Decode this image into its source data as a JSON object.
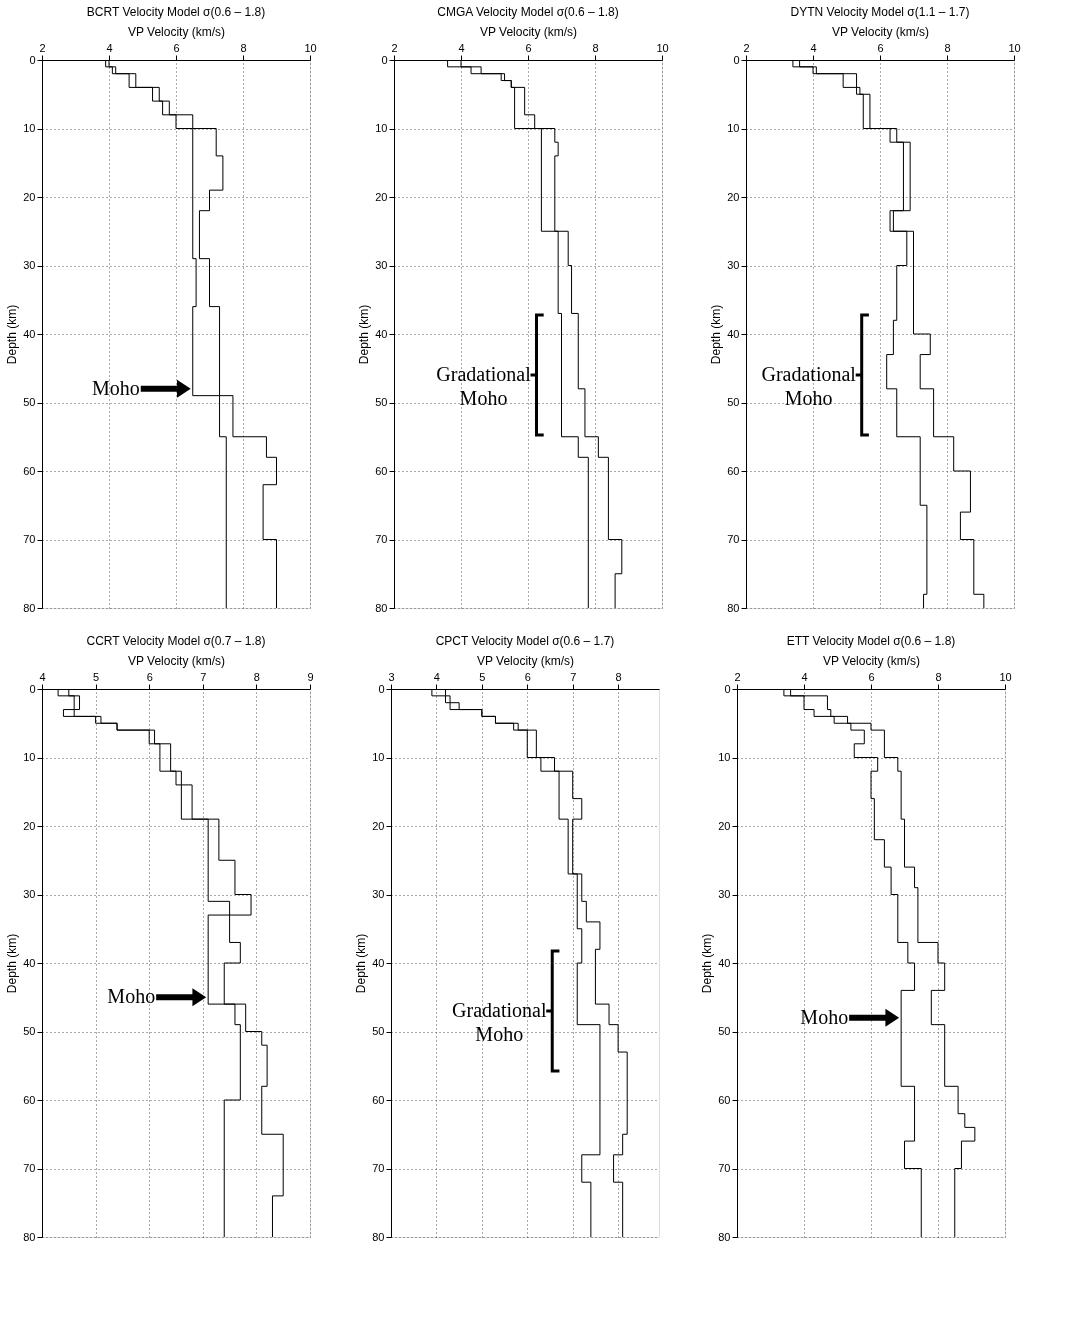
{
  "chart_data": [
    {
      "type": "line",
      "title": "BCRT Velocity Model σ(0.6 – 1.8)",
      "xlabel": "VP Velocity (km/s)",
      "ylabel": "Depth (km)",
      "xlim": [
        2,
        10
      ],
      "xticks": [
        2,
        4,
        6,
        8,
        10
      ],
      "ylim": [
        80,
        0
      ],
      "yticks": [
        0,
        10,
        20,
        30,
        40,
        50,
        60,
        70,
        80
      ],
      "grid": true,
      "line_style": "solid",
      "series": [
        {
          "color": "#000000",
          "x": [
            3.9,
            3.9,
            4.1,
            4.1,
            4.6,
            4.6,
            5.3,
            5.3,
            5.6,
            5.6,
            6.0,
            6.0,
            6.5,
            6.5,
            6.6,
            6.6,
            6.5,
            6.5,
            7.3,
            7.3,
            7.5,
            7.5
          ],
          "values": [
            0,
            1,
            1,
            2,
            2,
            4,
            4,
            6,
            6,
            8,
            8,
            10,
            10,
            29,
            29,
            36,
            36,
            49,
            49,
            55,
            55,
            80
          ]
        },
        {
          "color": "#000000",
          "x": [
            4.0,
            4.0,
            4.2,
            4.2,
            4.8,
            4.8,
            5.5,
            5.5,
            5.8,
            5.8,
            6.5,
            6.5,
            7.2,
            7.2,
            7.4,
            7.4,
            7.0,
            7.0,
            6.7,
            6.7,
            7.0,
            7.0,
            7.3,
            7.3,
            7.7,
            7.7,
            8.7,
            8.7,
            9.0,
            9.0,
            8.6,
            8.6,
            9.0,
            9.0
          ],
          "values": [
            0,
            1,
            1,
            2,
            2,
            4,
            4,
            6,
            6,
            8,
            8,
            10,
            10,
            14,
            14,
            19,
            19,
            22,
            22,
            29,
            29,
            36,
            36,
            49,
            49,
            55,
            55,
            58,
            58,
            62,
            62,
            70,
            70,
            80
          ]
        }
      ],
      "annotations": [
        {
          "text": "Moho",
          "x": 6.5,
          "y": 48
        }
      ]
    },
    {
      "type": "line",
      "title": "CMGA Velocity Model σ(0.6 – 1.8)",
      "xlabel": "VP Velocity (km/s)",
      "ylabel": "Depth (km)",
      "xlim": [
        2,
        10
      ],
      "xticks": [
        2,
        4,
        6,
        8,
        10
      ],
      "ylim": [
        80,
        0
      ],
      "yticks": [
        0,
        10,
        20,
        30,
        40,
        50,
        60,
        70,
        80
      ],
      "grid": true,
      "line_style": "solid",
      "series": [
        {
          "color": "#000000",
          "x": [
            3.6,
            3.6,
            4.3,
            4.3,
            5.2,
            5.2,
            5.5,
            5.5,
            5.6,
            5.6,
            6.4,
            6.4,
            6.9,
            6.9,
            7.0,
            7.0,
            7.5,
            7.5,
            7.8,
            7.8
          ],
          "values": [
            0,
            1,
            1,
            2,
            2,
            3,
            3,
            4,
            4,
            10,
            10,
            25,
            25,
            37,
            37,
            55,
            55,
            58,
            58,
            80
          ]
        },
        {
          "color": "#000000",
          "x": [
            4.0,
            4.0,
            4.6,
            4.6,
            5.3,
            5.3,
            5.5,
            5.5,
            5.9,
            5.9,
            6.2,
            6.2,
            6.8,
            6.8,
            6.9,
            6.9,
            6.8,
            6.8,
            7.2,
            7.2,
            7.3,
            7.3,
            7.5,
            7.5,
            7.7,
            7.7,
            8.1,
            8.1,
            8.4,
            8.4,
            8.8,
            8.8,
            8.6,
            8.6
          ],
          "values": [
            0,
            1,
            1,
            2,
            2,
            3,
            3,
            4,
            4,
            8,
            8,
            10,
            10,
            12,
            12,
            14,
            14,
            25,
            25,
            30,
            30,
            37,
            37,
            48,
            48,
            55,
            55,
            58,
            58,
            70,
            70,
            75,
            75,
            80
          ]
        }
      ],
      "annotations": [
        {
          "text": "Gradational\nMoho",
          "x": 7.0,
          "y": 46
        }
      ]
    },
    {
      "type": "line",
      "title": "DYTN Velocity Model σ(1.1 – 1.7)",
      "xlabel": "VP Velocity (km/s)",
      "ylabel": "Depth (km)",
      "xlim": [
        2,
        10
      ],
      "xticks": [
        2,
        4,
        6,
        8,
        10
      ],
      "ylim": [
        80,
        0
      ],
      "yticks": [
        0,
        10,
        20,
        30,
        40,
        50,
        60,
        70,
        80
      ],
      "grid": true,
      "line_style": "solid",
      "series": [
        {
          "color": "#000000",
          "x": [
            3.4,
            3.4,
            4.0,
            4.0,
            4.9,
            4.9,
            5.3,
            5.3,
            5.5,
            5.5,
            6.3,
            6.3,
            6.7,
            6.7,
            6.3,
            6.3,
            6.8,
            6.8,
            6.5,
            6.5,
            6.4,
            6.4,
            6.2,
            6.2,
            6.5,
            6.5,
            7.2,
            7.2,
            7.4,
            7.4,
            7.3,
            7.3
          ],
          "values": [
            0,
            1,
            1,
            2,
            2,
            4,
            4,
            5,
            5,
            10,
            10,
            12,
            12,
            22,
            22,
            25,
            25,
            30,
            30,
            38,
            38,
            43,
            43,
            48,
            48,
            55,
            55,
            65,
            65,
            78,
            78,
            80
          ]
        },
        {
          "color": "#000000",
          "x": [
            3.6,
            3.6,
            4.1,
            4.1,
            5.3,
            5.3,
            5.4,
            5.4,
            5.7,
            5.7,
            6.5,
            6.5,
            6.9,
            6.9,
            6.4,
            6.4,
            7.0,
            7.0,
            7.5,
            7.5,
            7.2,
            7.2,
            7.6,
            7.6,
            8.2,
            8.2,
            8.7,
            8.7,
            8.4,
            8.4,
            8.8,
            8.8,
            9.1,
            9.1
          ],
          "values": [
            0,
            1,
            1,
            2,
            2,
            4,
            4,
            5,
            5,
            10,
            10,
            12,
            12,
            22,
            22,
            25,
            25,
            40,
            40,
            43,
            43,
            48,
            48,
            55,
            55,
            60,
            60,
            66,
            66,
            70,
            70,
            78,
            78,
            80
          ]
        }
      ],
      "annotations": [
        {
          "text": "Gradational\nMoho",
          "x": 6.2,
          "y": 46
        }
      ]
    },
    {
      "type": "line",
      "title": "CCRT Velocity Model σ(0.7 – 1.8)",
      "xlabel": "VP Velocity (km/s)",
      "ylabel": "Depth (km)",
      "xlim": [
        4,
        9
      ],
      "xticks": [
        4,
        5,
        6,
        7,
        8,
        9
      ],
      "ylim": [
        80,
        0
      ],
      "yticks": [
        0,
        10,
        20,
        30,
        40,
        50,
        60,
        70,
        80
      ],
      "grid": true,
      "line_style": "solid",
      "series": [
        {
          "color": "#000000",
          "x": [
            4.3,
            4.3,
            4.6,
            4.6,
            4.4,
            4.4,
            5.0,
            5.0,
            5.4,
            5.4,
            6.0,
            6.0,
            6.2,
            6.2,
            6.5,
            6.5,
            6.6,
            6.6,
            7.1,
            7.1,
            7.5,
            7.5,
            7.1,
            7.1,
            7.6,
            7.6,
            7.7,
            7.7,
            7.4,
            7.4
          ],
          "values": [
            0,
            1,
            1,
            3,
            3,
            4,
            4,
            5,
            5,
            6,
            6,
            8,
            8,
            12,
            12,
            14,
            14,
            19,
            19,
            31,
            31,
            33,
            33,
            46,
            46,
            49,
            49,
            60,
            60,
            80
          ]
        },
        {
          "color": "#000000",
          "x": [
            4.5,
            4.5,
            4.7,
            4.7,
            4.6,
            4.6,
            5.1,
            5.1,
            5.4,
            5.4,
            6.1,
            6.1,
            6.4,
            6.4,
            6.6,
            6.6,
            6.8,
            6.8,
            7.3,
            7.3,
            7.6,
            7.6,
            7.9,
            7.9,
            7.5,
            7.5,
            7.7,
            7.7,
            7.4,
            7.4,
            7.8,
            7.8,
            8.1,
            8.1,
            8.2,
            8.2,
            8.1,
            8.1,
            8.5,
            8.5,
            8.3,
            8.3
          ],
          "values": [
            0,
            1,
            1,
            3,
            3,
            4,
            4,
            5,
            5,
            6,
            6,
            8,
            8,
            12,
            12,
            14,
            14,
            19,
            19,
            25,
            25,
            30,
            30,
            33,
            33,
            37,
            37,
            40,
            40,
            46,
            46,
            50,
            50,
            52,
            52,
            58,
            58,
            65,
            65,
            74,
            74,
            80
          ]
        }
      ],
      "annotations": [
        {
          "text": "Moho",
          "x": 7.1,
          "y": 45
        }
      ]
    },
    {
      "type": "line",
      "title": "CPCT Velocity Model σ(0.6 – 1.7)",
      "xlabel": "VP Velocity (km/s)",
      "ylabel": "Depth (km)",
      "xlim": [
        3,
        8.9
      ],
      "xticks": [
        3,
        4,
        5,
        6,
        7,
        8
      ],
      "ylim": [
        80,
        0
      ],
      "yticks": [
        0,
        10,
        20,
        30,
        40,
        50,
        60,
        70,
        80
      ],
      "grid": true,
      "line_style": "solid",
      "series": [
        {
          "color": "#000000",
          "x": [
            3.9,
            3.9,
            4.2,
            4.2,
            4.3,
            4.3,
            5.0,
            5.0,
            5.3,
            5.3,
            5.7,
            5.7,
            6.0,
            6.0,
            6.3,
            6.3,
            6.7,
            6.7,
            6.9,
            6.9,
            7.1,
            7.1,
            7.2,
            7.2,
            7.1,
            7.1,
            7.6,
            7.6,
            7.2,
            7.2,
            7.4,
            7.4
          ],
          "values": [
            0,
            1,
            1,
            2,
            2,
            3,
            3,
            4,
            4,
            5,
            5,
            6,
            6,
            10,
            10,
            12,
            12,
            19,
            19,
            27,
            27,
            35,
            35,
            40,
            40,
            49,
            49,
            68,
            68,
            72,
            72,
            80
          ]
        },
        {
          "color": "#000000",
          "x": [
            4.2,
            4.2,
            4.3,
            4.3,
            4.5,
            4.5,
            5.0,
            5.0,
            5.3,
            5.3,
            5.8,
            5.8,
            6.2,
            6.2,
            6.6,
            6.6,
            7.0,
            7.0,
            7.2,
            7.2,
            7.0,
            7.0,
            7.2,
            7.2,
            7.3,
            7.3,
            7.6,
            7.6,
            7.5,
            7.5,
            7.8,
            7.8,
            8.0,
            8.0,
            8.2,
            8.2,
            8.1,
            8.1,
            7.9,
            7.9,
            8.1,
            8.1
          ],
          "values": [
            0,
            1,
            1,
            2,
            2,
            3,
            3,
            4,
            4,
            5,
            5,
            6,
            6,
            10,
            10,
            12,
            12,
            16,
            16,
            19,
            19,
            27,
            27,
            31,
            31,
            34,
            34,
            38,
            38,
            46,
            46,
            49,
            49,
            53,
            53,
            65,
            65,
            68,
            68,
            72,
            72,
            80
          ]
        }
      ],
      "annotations": [
        {
          "text": "Gradational\nMoho",
          "x": 7.1,
          "y": 47
        }
      ]
    },
    {
      "type": "line",
      "title": "ETT Velocity Model σ(0.6 – 1.8)",
      "xlabel": "VP Velocity (km/s)",
      "ylabel": "Depth (km)",
      "xlim": [
        2,
        10
      ],
      "xticks": [
        2,
        4,
        6,
        8,
        10
      ],
      "ylim": [
        80,
        0
      ],
      "yticks": [
        0,
        10,
        20,
        30,
        40,
        50,
        60,
        70,
        80
      ],
      "grid": true,
      "line_style": "solid",
      "series": [
        {
          "color": "#000000",
          "x": [
            3.4,
            3.4,
            4.0,
            4.0,
            4.3,
            4.3,
            4.9,
            4.9,
            5.4,
            5.4,
            5.8,
            5.8,
            5.5,
            5.5,
            6.2,
            6.2,
            6.0,
            6.0,
            6.1,
            6.1,
            6.4,
            6.4,
            6.6,
            6.6,
            6.8,
            6.8,
            7.1,
            7.1,
            7.3,
            7.3,
            6.9,
            6.9,
            7.3,
            7.3,
            7.0,
            7.0,
            7.5,
            7.5
          ],
          "values": [
            0,
            1,
            1,
            3,
            3,
            4,
            4,
            5,
            5,
            6,
            6,
            8,
            8,
            10,
            10,
            12,
            12,
            16,
            16,
            22,
            22,
            26,
            26,
            30,
            30,
            37,
            37,
            40,
            40,
            44,
            44,
            58,
            58,
            66,
            66,
            70,
            70,
            80
          ]
        },
        {
          "color": "#000000",
          "x": [
            3.6,
            3.6,
            4.7,
            4.7,
            4.8,
            4.8,
            5.3,
            5.3,
            6.0,
            6.0,
            6.4,
            6.4,
            6.8,
            6.8,
            6.9,
            6.9,
            7.0,
            7.0,
            7.3,
            7.3,
            7.4,
            7.4,
            8.0,
            8.0,
            8.2,
            8.2,
            7.8,
            7.8,
            8.2,
            8.2,
            8.6,
            8.6,
            8.8,
            8.8,
            9.1,
            9.1,
            8.7,
            8.7,
            8.5,
            8.5
          ],
          "values": [
            0,
            1,
            1,
            3,
            3,
            4,
            4,
            5,
            5,
            6,
            6,
            10,
            10,
            12,
            12,
            19,
            19,
            26,
            26,
            29,
            29,
            37,
            37,
            40,
            40,
            44,
            44,
            49,
            49,
            58,
            58,
            62,
            62,
            64,
            64,
            66,
            66,
            70,
            70,
            80
          ]
        }
      ],
      "annotations": [
        {
          "text": "Moho",
          "x": 6.9,
          "y": 48
        }
      ]
    }
  ]
}
